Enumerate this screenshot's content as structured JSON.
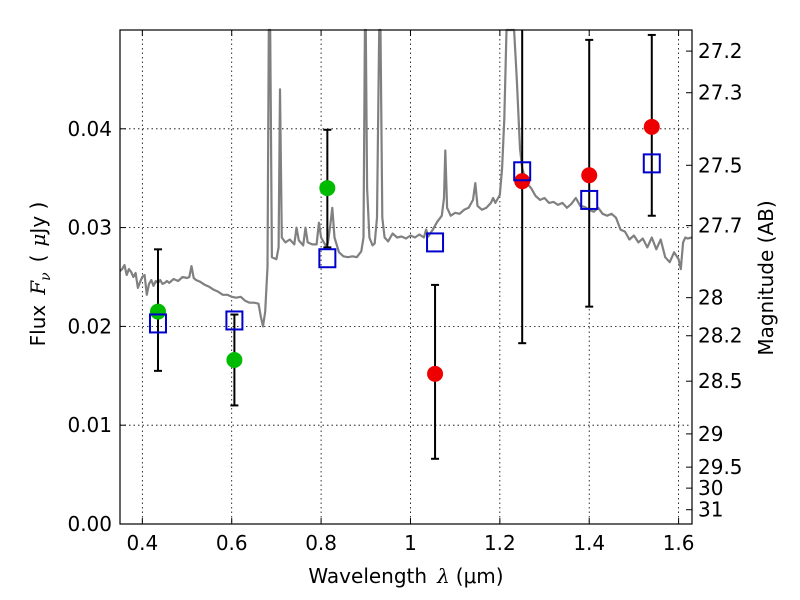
{
  "chart_data": {
    "type": "scatter",
    "title": "",
    "xlabel_text": "Wavelength",
    "xlabel_symbol": "λ",
    "xlabel_unit": "(μm)",
    "ylabel_text": "Flux",
    "ylabel_symbol": "F",
    "ylabel_subscript": "ν",
    "ylabel_unit_open": "(",
    "ylabel_unit_mu": "μ",
    "ylabel_unit_rest": "Jy )",
    "y2label": "Magnitude (AB)",
    "xlim": [
      0.35,
      1.63
    ],
    "ylim": [
      0.0,
      0.05
    ],
    "grid": true,
    "x_ticks": [
      {
        "value": 0.4,
        "label": "0.4"
      },
      {
        "value": 0.6,
        "label": "0.6"
      },
      {
        "value": 0.8,
        "label": "0.8"
      },
      {
        "value": 1.0,
        "label": "1"
      },
      {
        "value": 1.2,
        "label": "1.2"
      },
      {
        "value": 1.4,
        "label": "1.4"
      },
      {
        "value": 1.6,
        "label": "1.6"
      }
    ],
    "y_ticks": [
      {
        "value": 0.0,
        "label": "0.00"
      },
      {
        "value": 0.01,
        "label": "0.01"
      },
      {
        "value": 0.02,
        "label": "0.02"
      },
      {
        "value": 0.03,
        "label": "0.03"
      },
      {
        "value": 0.04,
        "label": "0.04"
      }
    ],
    "mag_ticks": [
      {
        "mag": 27.2,
        "label": "27.2"
      },
      {
        "mag": 27.3,
        "label": "27.3"
      },
      {
        "mag": 27.5,
        "label": "27.5"
      },
      {
        "mag": 27.7,
        "label": "27.7"
      },
      {
        "mag": 28.0,
        "label": "28"
      },
      {
        "mag": 28.2,
        "label": "28.2"
      },
      {
        "mag": 28.5,
        "label": "28.5"
      },
      {
        "mag": 29.0,
        "label": "29"
      },
      {
        "mag": 29.5,
        "label": "29.5"
      },
      {
        "mag": 30.0,
        "label": "30"
      },
      {
        "mag": 31.0,
        "label": "31"
      }
    ],
    "series": [
      {
        "marker": "circle",
        "color": "#00bb00",
        "points": [
          {
            "x": 0.435,
            "y": 0.0215
          },
          {
            "x": 0.606,
            "y": 0.0166
          },
          {
            "x": 0.814,
            "y": 0.034
          }
        ]
      },
      {
        "marker": "circle",
        "color": "#ee0000",
        "points": [
          {
            "x": 1.055,
            "y": 0.0152
          },
          {
            "x": 1.25,
            "y": 0.0347
          },
          {
            "x": 1.4,
            "y": 0.0353
          },
          {
            "x": 1.54,
            "y": 0.0402
          }
        ]
      },
      {
        "marker": "open-square",
        "color": "#0000cc",
        "points": [
          {
            "x": 0.435,
            "y": 0.0203
          },
          {
            "x": 0.606,
            "y": 0.0206
          },
          {
            "x": 0.814,
            "y": 0.0269
          },
          {
            "x": 1.055,
            "y": 0.0285
          },
          {
            "x": 1.25,
            "y": 0.0357
          },
          {
            "x": 1.4,
            "y": 0.0328
          },
          {
            "x": 1.54,
            "y": 0.0365
          }
        ]
      }
    ],
    "error_bars": [
      {
        "x": 0.435,
        "low": 0.0155,
        "high": 0.0278
      },
      {
        "x": 0.606,
        "low": 0.012,
        "high": 0.0212
      },
      {
        "x": 0.814,
        "low": 0.028,
        "high": 0.0399
      },
      {
        "x": 1.055,
        "low": 0.0066,
        "high": 0.0242
      },
      {
        "x": 1.25,
        "low": 0.0183,
        "high": 0.05
      },
      {
        "x": 1.4,
        "low": 0.022,
        "high": 0.049
      },
      {
        "x": 1.54,
        "low": 0.0312,
        "high": 0.0495
      }
    ],
    "model_spectrum": {
      "color": "#808080",
      "points": [
        [
          0.35,
          0.0256
        ],
        [
          0.355,
          0.0258
        ],
        [
          0.36,
          0.0262
        ],
        [
          0.365,
          0.0252
        ],
        [
          0.37,
          0.0258
        ],
        [
          0.375,
          0.0255
        ],
        [
          0.38,
          0.025
        ],
        [
          0.385,
          0.0254
        ],
        [
          0.39,
          0.0239
        ],
        [
          0.395,
          0.0245
        ],
        [
          0.4,
          0.025
        ],
        [
          0.405,
          0.0252
        ],
        [
          0.41,
          0.0232
        ],
        [
          0.415,
          0.0243
        ],
        [
          0.42,
          0.0247
        ],
        [
          0.425,
          0.0241
        ],
        [
          0.43,
          0.0246
        ],
        [
          0.435,
          0.0244
        ],
        [
          0.44,
          0.0247
        ],
        [
          0.445,
          0.0243
        ],
        [
          0.45,
          0.0244
        ],
        [
          0.455,
          0.0246
        ],
        [
          0.46,
          0.0244
        ],
        [
          0.47,
          0.0248
        ],
        [
          0.48,
          0.0246
        ],
        [
          0.49,
          0.025
        ],
        [
          0.5,
          0.0249
        ],
        [
          0.505,
          0.025
        ],
        [
          0.51,
          0.0261
        ],
        [
          0.515,
          0.0249
        ],
        [
          0.52,
          0.0247
        ],
        [
          0.53,
          0.0245
        ],
        [
          0.54,
          0.0242
        ],
        [
          0.55,
          0.024
        ],
        [
          0.56,
          0.0237
        ],
        [
          0.57,
          0.0235
        ],
        [
          0.58,
          0.0232
        ],
        [
          0.59,
          0.0232
        ],
        [
          0.6,
          0.023
        ],
        [
          0.61,
          0.0229
        ],
        [
          0.62,
          0.023
        ],
        [
          0.63,
          0.0226
        ],
        [
          0.64,
          0.0224
        ],
        [
          0.65,
          0.0224
        ],
        [
          0.66,
          0.0223
        ],
        [
          0.665,
          0.021
        ],
        [
          0.67,
          0.02
        ],
        [
          0.675,
          0.0215
        ],
        [
          0.68,
          0.026
        ],
        [
          0.683,
          0.05
        ],
        [
          0.686,
          0.05
        ],
        [
          0.69,
          0.027
        ],
        [
          0.7,
          0.0268
        ],
        [
          0.705,
          0.028
        ],
        [
          0.708,
          0.044
        ],
        [
          0.712,
          0.029
        ],
        [
          0.72,
          0.0285
        ],
        [
          0.73,
          0.0288
        ],
        [
          0.74,
          0.0283
        ],
        [
          0.745,
          0.03
        ],
        [
          0.75,
          0.0287
        ],
        [
          0.76,
          0.0282
        ],
        [
          0.765,
          0.03
        ],
        [
          0.77,
          0.0285
        ],
        [
          0.78,
          0.0283
        ],
        [
          0.79,
          0.0283
        ],
        [
          0.795,
          0.0305
        ],
        [
          0.8,
          0.029
        ],
        [
          0.805,
          0.0286
        ],
        [
          0.81,
          0.0282
        ],
        [
          0.815,
          0.0284
        ],
        [
          0.82,
          0.03
        ],
        [
          0.825,
          0.032
        ],
        [
          0.83,
          0.029
        ],
        [
          0.84,
          0.0275
        ],
        [
          0.85,
          0.0271
        ],
        [
          0.86,
          0.027
        ],
        [
          0.87,
          0.0271
        ],
        [
          0.88,
          0.027
        ],
        [
          0.89,
          0.0276
        ],
        [
          0.895,
          0.029
        ],
        [
          0.898,
          0.05
        ],
        [
          0.9,
          0.05
        ],
        [
          0.903,
          0.034
        ],
        [
          0.908,
          0.029
        ],
        [
          0.915,
          0.0282
        ],
        [
          0.92,
          0.0284
        ],
        [
          0.925,
          0.031
        ],
        [
          0.93,
          0.05
        ],
        [
          0.933,
          0.05
        ],
        [
          0.937,
          0.031
        ],
        [
          0.942,
          0.029
        ],
        [
          0.95,
          0.0286
        ],
        [
          0.96,
          0.0294
        ],
        [
          0.97,
          0.029
        ],
        [
          0.98,
          0.0291
        ],
        [
          0.99,
          0.0289
        ],
        [
          1.0,
          0.0292
        ],
        [
          1.01,
          0.029
        ],
        [
          1.02,
          0.0293
        ],
        [
          1.03,
          0.029
        ],
        [
          1.035,
          0.0298
        ],
        [
          1.04,
          0.0291
        ],
        [
          1.05,
          0.0298
        ],
        [
          1.06,
          0.0306
        ],
        [
          1.07,
          0.0312
        ],
        [
          1.075,
          0.033
        ],
        [
          1.078,
          0.0378
        ],
        [
          1.082,
          0.032
        ],
        [
          1.09,
          0.0312
        ],
        [
          1.1,
          0.0315
        ],
        [
          1.11,
          0.0314
        ],
        [
          1.12,
          0.0318
        ],
        [
          1.13,
          0.032
        ],
        [
          1.14,
          0.0328
        ],
        [
          1.145,
          0.0345
        ],
        [
          1.15,
          0.0322
        ],
        [
          1.16,
          0.0318
        ],
        [
          1.17,
          0.032
        ],
        [
          1.18,
          0.0325
        ],
        [
          1.185,
          0.033
        ],
        [
          1.19,
          0.0325
        ],
        [
          1.2,
          0.0333
        ],
        [
          1.205,
          0.036
        ],
        [
          1.21,
          0.041
        ],
        [
          1.215,
          0.05
        ],
        [
          1.22,
          0.05
        ],
        [
          1.225,
          0.05
        ],
        [
          1.232,
          0.05
        ],
        [
          1.238,
          0.045
        ],
        [
          1.245,
          0.038
        ],
        [
          1.25,
          0.036
        ],
        [
          1.26,
          0.0345
        ],
        [
          1.27,
          0.034
        ],
        [
          1.28,
          0.0332
        ],
        [
          1.29,
          0.0328
        ],
        [
          1.3,
          0.033
        ],
        [
          1.31,
          0.0325
        ],
        [
          1.32,
          0.0326
        ],
        [
          1.33,
          0.0323
        ],
        [
          1.34,
          0.0325
        ],
        [
          1.35,
          0.032
        ],
        [
          1.36,
          0.0324
        ],
        [
          1.37,
          0.033
        ],
        [
          1.38,
          0.0322
        ],
        [
          1.39,
          0.0321
        ],
        [
          1.4,
          0.0318
        ],
        [
          1.41,
          0.0316
        ],
        [
          1.42,
          0.032
        ],
        [
          1.43,
          0.0314
        ],
        [
          1.44,
          0.0312
        ],
        [
          1.45,
          0.0314
        ],
        [
          1.46,
          0.031
        ],
        [
          1.47,
          0.0298
        ],
        [
          1.48,
          0.0296
        ],
        [
          1.49,
          0.0288
        ],
        [
          1.5,
          0.0292
        ],
        [
          1.51,
          0.0285
        ],
        [
          1.52,
          0.0289
        ],
        [
          1.53,
          0.028
        ],
        [
          1.54,
          0.029
        ],
        [
          1.55,
          0.0278
        ],
        [
          1.56,
          0.0288
        ],
        [
          1.57,
          0.027
        ],
        [
          1.58,
          0.0265
        ],
        [
          1.59,
          0.0275
        ],
        [
          1.6,
          0.0268
        ],
        [
          1.605,
          0.0258
        ],
        [
          1.61,
          0.0285
        ],
        [
          1.615,
          0.029
        ],
        [
          1.62,
          0.0289
        ],
        [
          1.63,
          0.029
        ]
      ]
    }
  }
}
